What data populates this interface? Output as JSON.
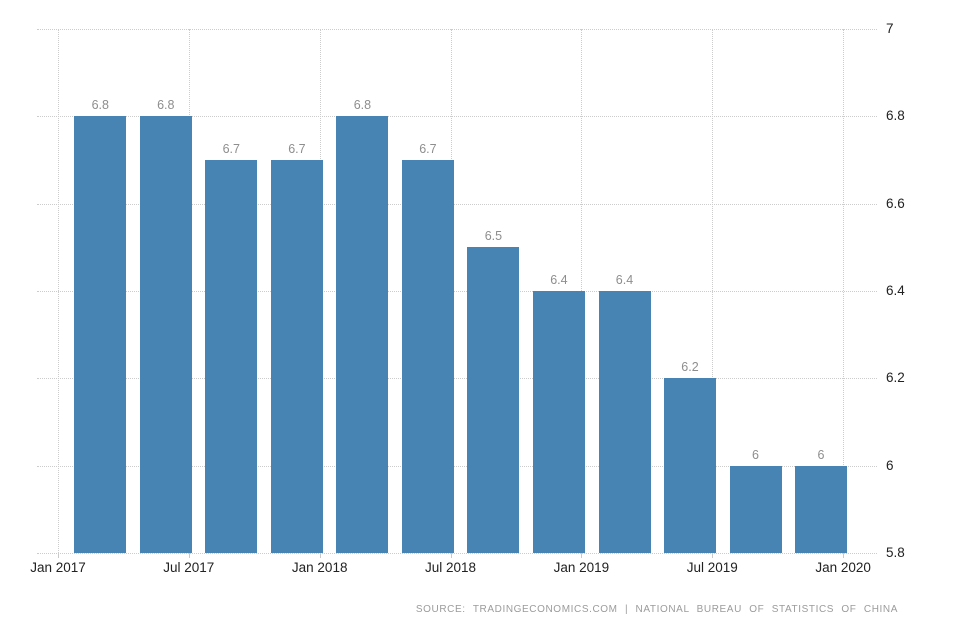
{
  "chart_data": {
    "type": "bar",
    "title": "",
    "categories": [
      "Q1 2017",
      "Q2 2017",
      "Q3 2017",
      "Q4 2017",
      "Q1 2018",
      "Q2 2018",
      "Q3 2018",
      "Q4 2018",
      "Q1 2019",
      "Q2 2019",
      "Q3 2019",
      "Q4 2019"
    ],
    "values": [
      6.8,
      6.8,
      6.7,
      6.7,
      6.8,
      6.7,
      6.5,
      6.4,
      6.4,
      6.2,
      6,
      6
    ],
    "bar_labels": [
      "6.8",
      "6.8",
      "6.7",
      "6.7",
      "6.8",
      "6.7",
      "6.5",
      "6.4",
      "6.4",
      "6.2",
      "6",
      "6"
    ],
    "x_tick_labels": [
      "Jan 2017",
      "Jul 2017",
      "Jan 2018",
      "Jul 2018",
      "Jan 2019",
      "Jul 2019",
      "Jan 2020"
    ],
    "y_tick_labels": [
      "7",
      "6.8",
      "6.6",
      "6.4",
      "6.2",
      "6",
      "5.8"
    ],
    "y_tick_values": [
      7,
      6.8,
      6.6,
      6.4,
      6.2,
      6,
      5.8
    ],
    "ylim": [
      5.8,
      7
    ],
    "xlabel": "",
    "ylabel": "",
    "grid": "dotted",
    "legend": "none",
    "bar_color": "#4784b4",
    "data_label_color": "#8e8e8e",
    "axis_text_color": "#222222",
    "grid_color": "#cccccc"
  },
  "source": {
    "text": "SOURCE: TRADINGECONOMICS.COM | NATIONAL BUREAU OF STATISTICS OF CHINA"
  }
}
